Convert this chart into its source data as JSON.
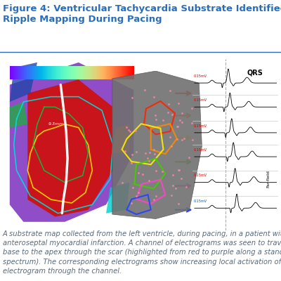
{
  "title_line1": "Figure 4: Ventricular Tachycardia Substrate Identified By",
  "title_line2": "Ripple Mapping During Pacing",
  "title_color": "#2a6ebb",
  "caption": "A substrate map collected from the left ventricle, during pacing, in a patient with prior\nanteroseptal myocardial infarction. A channel of electrograms was seen to travel from the\nbase to the apex through the scar (highlighted from red to purple along a standard rainbow\nspectrum). The corresponding electrograms show increasing local activation of the delayed\nelectrogram through the channel.",
  "caption_color": "#5a6a7a",
  "bg_color": "#ffffff",
  "figure_bg": "#000000",
  "divider_color": "#2a6ebb",
  "title_fontsize": 9.5,
  "caption_fontsize": 7.2
}
